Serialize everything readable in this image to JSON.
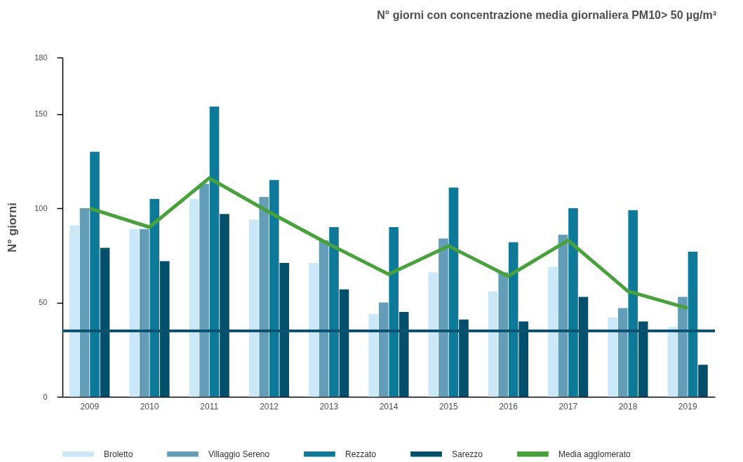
{
  "chart_data": {
    "type": "bar",
    "title": "N° giorni con concentrazione media giornaliera PM10> 50 µg/m³",
    "ylabel": "N° giorni",
    "categories": [
      "2009",
      "2010",
      "2011",
      "2012",
      "2013",
      "2014",
      "2015",
      "2016",
      "2017",
      "2018",
      "2019"
    ],
    "series": [
      {
        "name": "Broletto",
        "color": "#cbe8f8",
        "values": [
          91,
          89,
          105,
          94,
          71,
          44,
          66,
          56,
          69,
          42,
          37
        ]
      },
      {
        "name": "Villaggio Sereno",
        "color": "#639db8",
        "values": [
          100,
          89,
          113,
          106,
          83,
          50,
          84,
          66,
          86,
          47,
          53
        ]
      },
      {
        "name": "Rezzato",
        "color": "#0e7a99",
        "values": [
          130,
          105,
          154,
          115,
          90,
          90,
          111,
          82,
          100,
          99,
          77
        ]
      },
      {
        "name": "Sarezzo",
        "color": "#02506c",
        "values": [
          79,
          72,
          97,
          71,
          57,
          45,
          41,
          40,
          53,
          40,
          17
        ]
      },
      {
        "name": "Media agglomerato",
        "type": "line",
        "color": "#48a23a",
        "values": [
          100,
          90,
          116,
          98,
          81,
          65,
          80,
          64,
          83,
          56,
          47
        ]
      }
    ],
    "ylim": [
      0,
      180
    ],
    "yticks": [
      0,
      50,
      100,
      150,
      180
    ],
    "ref_lines": [
      {
        "axis": "y",
        "value": 35,
        "color": "#0b5370"
      }
    ],
    "legend": "bottom"
  }
}
